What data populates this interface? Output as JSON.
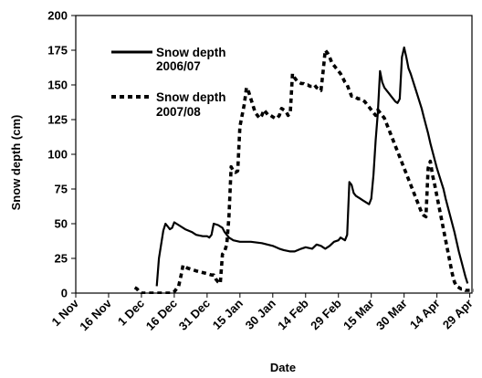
{
  "chart_data": {
    "type": "line",
    "xlabel": "Date",
    "ylabel": "Snow depth (cm)",
    "ylim": [
      0,
      200
    ],
    "yticks": [
      0,
      25,
      50,
      75,
      100,
      125,
      150,
      175,
      200
    ],
    "xticks": [
      "1 Nov",
      "16 Nov",
      "1 Dec",
      "16 Dec",
      "31 Dec",
      "15 Jan",
      "30 Jan",
      "14 Feb",
      "29 Feb",
      "15 Mar",
      "30 Mar",
      "14 Apr",
      "29 Apr"
    ],
    "x_units": "days after 1 Nov",
    "legend_position": "top-left",
    "grid": false,
    "series": [
      {
        "name_line1": "Snow depth",
        "name_line2": "2006/07",
        "style": "solid",
        "color": "#000000",
        "x": [
          37,
          38,
          40,
          41,
          42,
          43,
          44,
          45,
          47,
          50,
          53,
          55,
          58,
          60,
          61,
          62,
          63,
          65,
          67,
          68,
          70,
          72,
          75,
          80,
          85,
          90,
          93,
          95,
          98,
          100,
          103,
          105,
          108,
          110,
          112,
          114,
          116,
          118,
          120,
          121,
          122,
          123,
          124,
          125,
          126,
          127,
          128,
          129,
          130,
          131,
          132,
          133,
          134,
          135,
          136,
          137,
          138,
          139,
          140,
          141,
          142,
          143,
          144,
          145,
          146,
          147,
          148,
          149,
          150,
          151,
          152,
          153,
          154,
          155,
          156,
          157,
          158,
          159,
          160,
          161,
          162,
          163,
          164,
          165,
          166,
          167,
          168,
          169,
          170,
          171,
          172,
          173,
          174,
          175,
          176,
          177,
          178,
          179
        ],
        "y": [
          5,
          25,
          45,
          50,
          48,
          46,
          47,
          51,
          49,
          46,
          44,
          42,
          41,
          41,
          40,
          42,
          50,
          49,
          47,
          44,
          40,
          38,
          37,
          37,
          36,
          34,
          32,
          31,
          30,
          30,
          32,
          33,
          32,
          35,
          34,
          32,
          34,
          37,
          38,
          40,
          39,
          38,
          42,
          80,
          78,
          72,
          70,
          69,
          68,
          67,
          66,
          65,
          64,
          68,
          85,
          110,
          130,
          160,
          152,
          148,
          146,
          144,
          142,
          140,
          138,
          137,
          140,
          170,
          177,
          170,
          162,
          158,
          153,
          148,
          143,
          138,
          133,
          127,
          121,
          115,
          108,
          102,
          96,
          90,
          85,
          80,
          75,
          68,
          62,
          56,
          50,
          44,
          37,
          30,
          24,
          18,
          12,
          7
        ]
      },
      {
        "name_line1": "Snow depth",
        "name_line2": "2007/08",
        "style": "dashed",
        "color": "#000000",
        "x": [
          27,
          28,
          29,
          30,
          31,
          44,
          45,
          46,
          47,
          48,
          49,
          50,
          51,
          55,
          60,
          62,
          63,
          64,
          65,
          66,
          67,
          68,
          69,
          70,
          71,
          72,
          73,
          74,
          75,
          76,
          77,
          78,
          79,
          80,
          81,
          82,
          83,
          84,
          85,
          86,
          87,
          88,
          89,
          90,
          91,
          92,
          93,
          94,
          95,
          96,
          97,
          98,
          99,
          100,
          101,
          102,
          103,
          104,
          105,
          106,
          107,
          108,
          109,
          110,
          111,
          112,
          113,
          114,
          115,
          116,
          117,
          118,
          119,
          120,
          121,
          122,
          123,
          124,
          125,
          126,
          127,
          128,
          129,
          130,
          131,
          132,
          133,
          134,
          135,
          136,
          137,
          138,
          139,
          140,
          141,
          142,
          143,
          144,
          145,
          146,
          147,
          148,
          149,
          150,
          151,
          152,
          153,
          154,
          155,
          156,
          157,
          158,
          159,
          160,
          161,
          162,
          163,
          164,
          165,
          166,
          167,
          168,
          169,
          170,
          171,
          172,
          173,
          174,
          175,
          176,
          177,
          178,
          179,
          180,
          181,
          182
        ],
        "y": [
          4,
          3,
          1,
          0,
          0,
          0,
          1,
          3,
          5,
          12,
          20,
          19,
          18,
          16,
          14,
          13,
          13,
          10,
          8,
          7,
          28,
          30,
          35,
          55,
          91,
          88,
          87,
          88,
          120,
          128,
          136,
          148,
          145,
          140,
          135,
          130,
          128,
          126,
          128,
          132,
          130,
          128,
          128,
          127,
          126,
          126,
          128,
          133,
          132,
          131,
          128,
          130,
          158,
          155,
          153,
          152,
          151,
          151,
          150,
          150,
          149,
          149,
          150,
          148,
          147,
          146,
          160,
          175,
          173,
          170,
          166,
          164,
          162,
          160,
          158,
          155,
          152,
          150,
          146,
          142,
          142,
          141,
          140,
          140,
          139,
          138,
          136,
          134,
          132,
          130,
          128,
          132,
          130,
          128,
          126,
          122,
          118,
          114,
          110,
          106,
          102,
          98,
          94,
          90,
          86,
          82,
          78,
          74,
          70,
          66,
          62,
          58,
          56,
          55,
          90,
          95,
          85,
          78,
          70,
          62,
          54,
          46,
          38,
          30,
          22,
          14,
          8,
          5,
          4,
          3,
          3,
          2,
          2,
          2,
          2,
          2
        ]
      }
    ]
  }
}
